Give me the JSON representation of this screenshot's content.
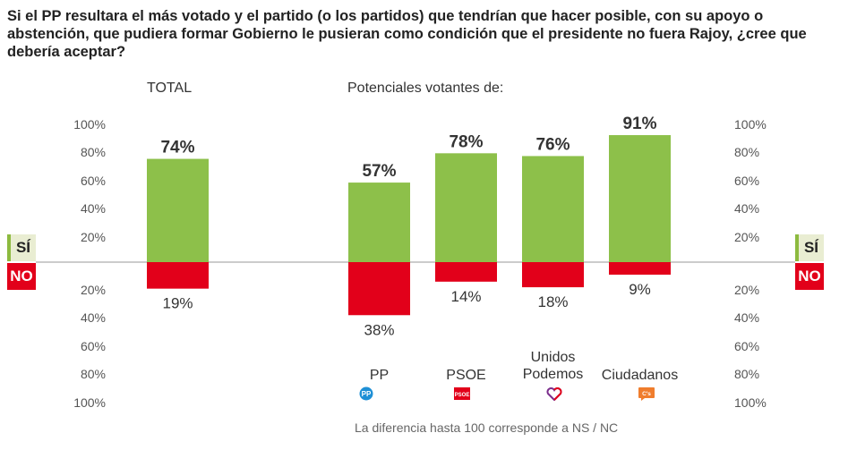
{
  "title": "Si el PP resultara el más votado y el partido (o los partidos) que tendrían que hacer posible, con su apoyo o abstención, que pudiera formar Gobierno le pusieran como condición que el presidente no fuera Rajoy, ¿cree que debería aceptar?",
  "sections": {
    "total": "TOTAL",
    "potential": "Potenciales votantes de:"
  },
  "badges": {
    "yes": "SÍ",
    "no": "NO"
  },
  "ticks_up": [
    "100%",
    "80%",
    "60%",
    "40%",
    "20%"
  ],
  "ticks_down": [
    "20%",
    "40%",
    "60%",
    "80%",
    "100%"
  ],
  "footnote": "La diferencia hasta 100 corresponde a NS / NC",
  "colors": {
    "yes": "#8dc04a",
    "no": "#e2001a",
    "axis": "#999999"
  },
  "logos": [
    {
      "party": "PP",
      "icon": "pp-logo-icon",
      "text": "PP",
      "color": "#1e90d6"
    },
    {
      "party": "PSOE",
      "icon": "psoe-logo-icon",
      "text": "PSOE",
      "color": "#e2001a"
    },
    {
      "party": "Unidos Podemos",
      "icon": "unidos-podemos-heart-icon",
      "text": "",
      "color": "#7b2e8d"
    },
    {
      "party": "Ciudadanos",
      "icon": "ciudadanos-logo-icon",
      "text": "C's",
      "color": "#f07d2d"
    }
  ],
  "chart_data": {
    "type": "bar",
    "title": "",
    "categories": [
      "TOTAL",
      "PP",
      "PSOE",
      "Unidos Podemos",
      "Ciudadanos"
    ],
    "category_labels": [
      "",
      "PP",
      "PSOE",
      "Unidos\nPodemos",
      "Ciudadanos"
    ],
    "series": [
      {
        "name": "SÍ",
        "values": [
          74,
          57,
          78,
          76,
          91
        ],
        "labels": [
          "74%",
          "57%",
          "78%",
          "76%",
          "91%"
        ]
      },
      {
        "name": "NO",
        "values": [
          19,
          38,
          14,
          18,
          9
        ],
        "labels": [
          "19%",
          "38%",
          "14%",
          "18%",
          "9%"
        ]
      }
    ],
    "ylim": [
      -100,
      100
    ],
    "diverging": true,
    "grid": false,
    "legend": "none"
  }
}
